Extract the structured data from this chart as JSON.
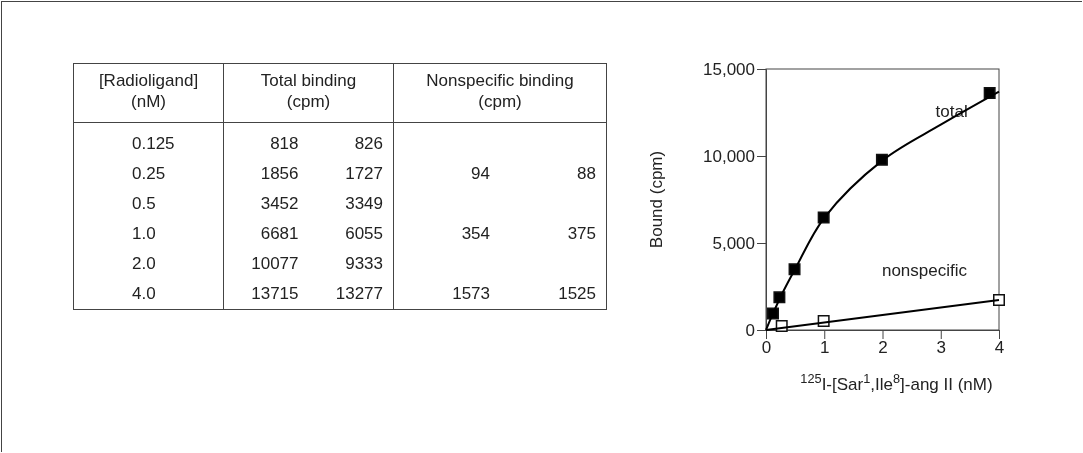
{
  "chart_data": [
    {
      "type": "other",
      "categories": [
        "[Radioligand] (nM)",
        "Total binding (cpm)",
        "Nonspecific binding (cpm)"
      ],
      "cell_labels": [
        [
          "0.125",
          "818",
          "826",
          null,
          null
        ],
        [
          "0.25",
          "1856",
          "1727",
          "94",
          "88"
        ],
        [
          "0.5",
          "3452",
          "3349",
          null,
          null
        ],
        [
          "1.0",
          "6681",
          "6055",
          "354",
          "375"
        ],
        [
          "2.0",
          "10077",
          "9333",
          null,
          null
        ],
        [
          "4.0",
          "13715",
          "13277",
          "1573",
          "1525"
        ]
      ]
    },
    {
      "type": "scatter",
      "xlabel": "$^{125}$I-[Sar$^{1}$,Ile$^{8}$]-ang II (nM)",
      "ylabel": "Bound (cpm)",
      "xlim": [
        0,
        4
      ],
      "ylim": [
        0,
        15000
      ],
      "xticks": [
        0,
        1,
        2,
        3,
        4
      ],
      "yticks": [
        {
          "value": 0,
          "label": "0"
        },
        {
          "value": 5000,
          "label": "5,000"
        },
        {
          "value": 10000,
          "label": "10,000"
        },
        {
          "value": 15000,
          "label": "15,000"
        }
      ],
      "grid": false,
      "marker": "square",
      "series": [
        {
          "name": "total",
          "color": "#000000",
          "x": [
            0.12,
            0.23,
            0.49,
            0.99,
            1.99,
            3.84
          ],
          "values": [
            950,
            1880,
            3490,
            6460,
            9780,
            13620
          ]
        },
        {
          "name": "nonspecific",
          "color": "#ffffff",
          "x": [
            0.27,
            0.99,
            4
          ],
          "values": [
            230,
            520,
            1730
          ]
        },
        {
          "type": "line",
          "marker": "none",
          "line_style": "solid",
          "color": "#000000",
          "x": [
            0,
            0.12,
            0.25,
            0.5,
            1,
            2,
            3,
            4
          ],
          "values": [
            0,
            950,
            1900,
            3500,
            6450,
            9750,
            11800,
            13700
          ]
        },
        {
          "type": "line",
          "marker": "none",
          "line_style": "solid",
          "color": "#000000",
          "x": [
            0,
            4
          ],
          "values": [
            0,
            1730
          ]
        }
      ]
    }
  ]
}
